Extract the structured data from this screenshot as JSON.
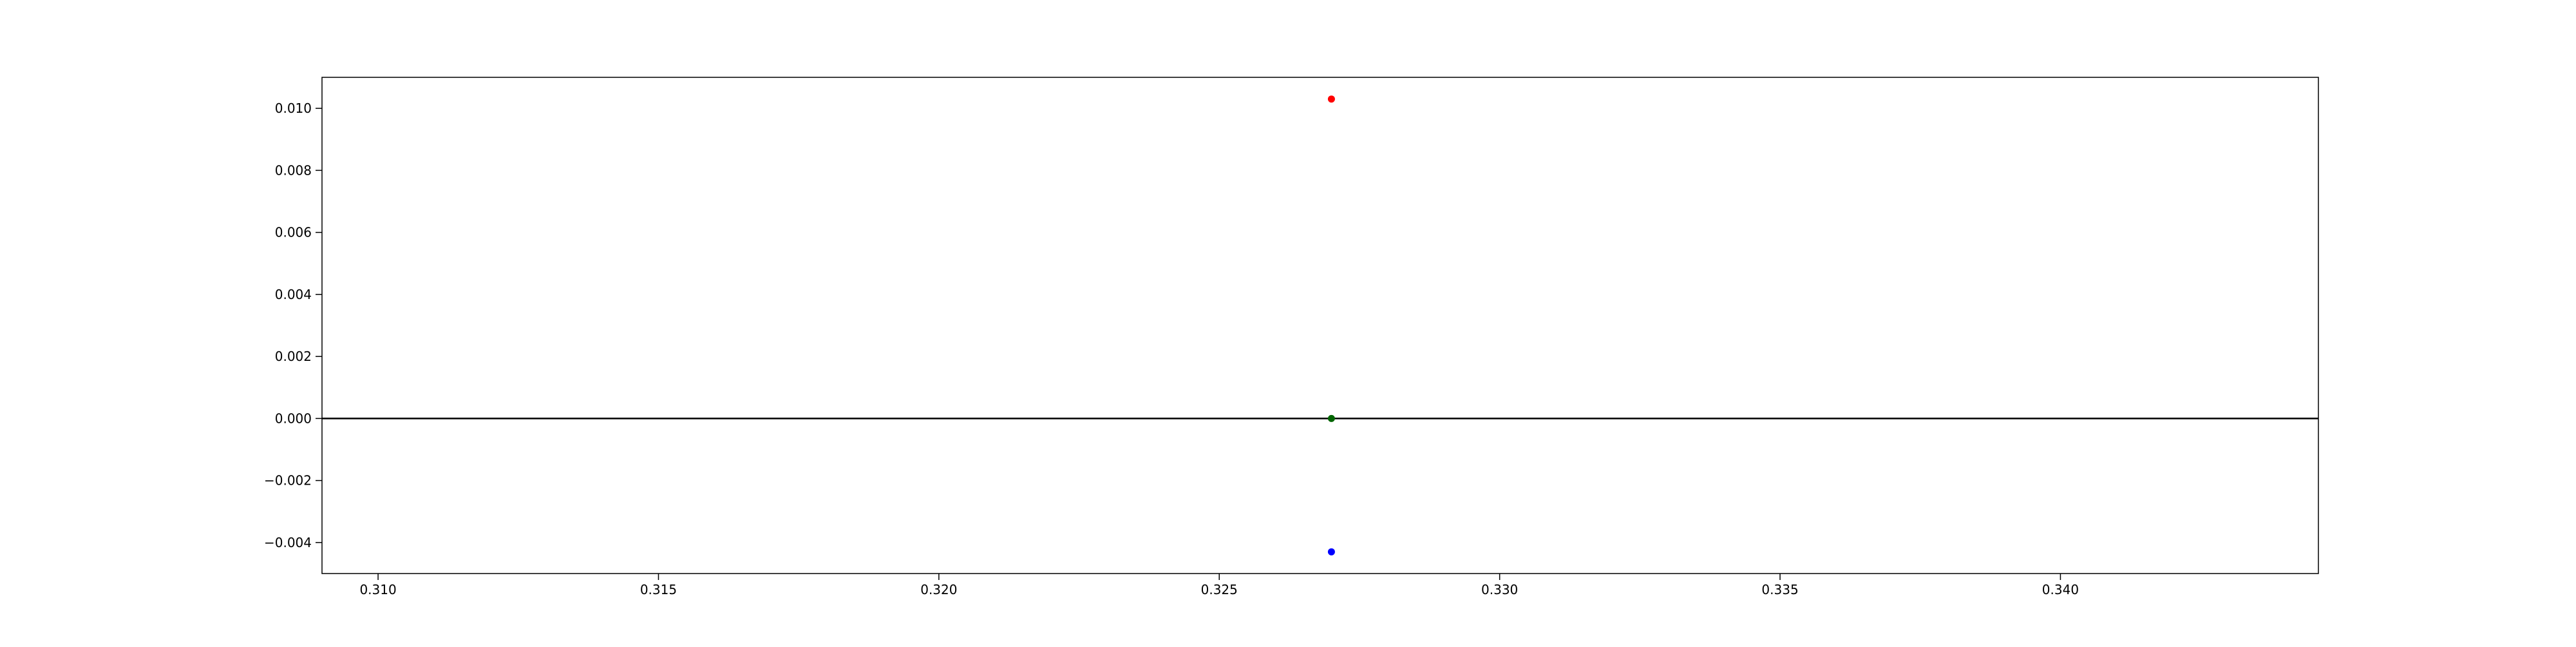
{
  "chart_data": {
    "type": "scatter",
    "title": "",
    "xlabel": "",
    "ylabel": "",
    "xlim": [
      0.309,
      0.3446
    ],
    "ylim": [
      -0.005,
      0.011
    ],
    "x_ticks": [
      0.31,
      0.315,
      0.32,
      0.325,
      0.33,
      0.335,
      0.34
    ],
    "x_tick_labels": [
      "0.310",
      "0.315",
      "0.320",
      "0.325",
      "0.330",
      "0.335",
      "0.340"
    ],
    "y_ticks": [
      -0.004,
      -0.002,
      0.0,
      0.002,
      0.004,
      0.006,
      0.008,
      0.01
    ],
    "y_tick_labels": [
      "−0.004",
      "−0.002",
      "0.000",
      "0.002",
      "0.004",
      "0.006",
      "0.008",
      "0.010"
    ],
    "grid": false,
    "legend": "none",
    "hlines": [
      {
        "y": 0.0,
        "color": "#000000"
      }
    ],
    "points": [
      {
        "x": 0.327,
        "y": 0.0103,
        "color": "#ff0000"
      },
      {
        "x": 0.327,
        "y": 0.0,
        "color": "#006400"
      },
      {
        "x": 0.327,
        "y": -0.0043,
        "color": "#0000ff"
      }
    ]
  }
}
